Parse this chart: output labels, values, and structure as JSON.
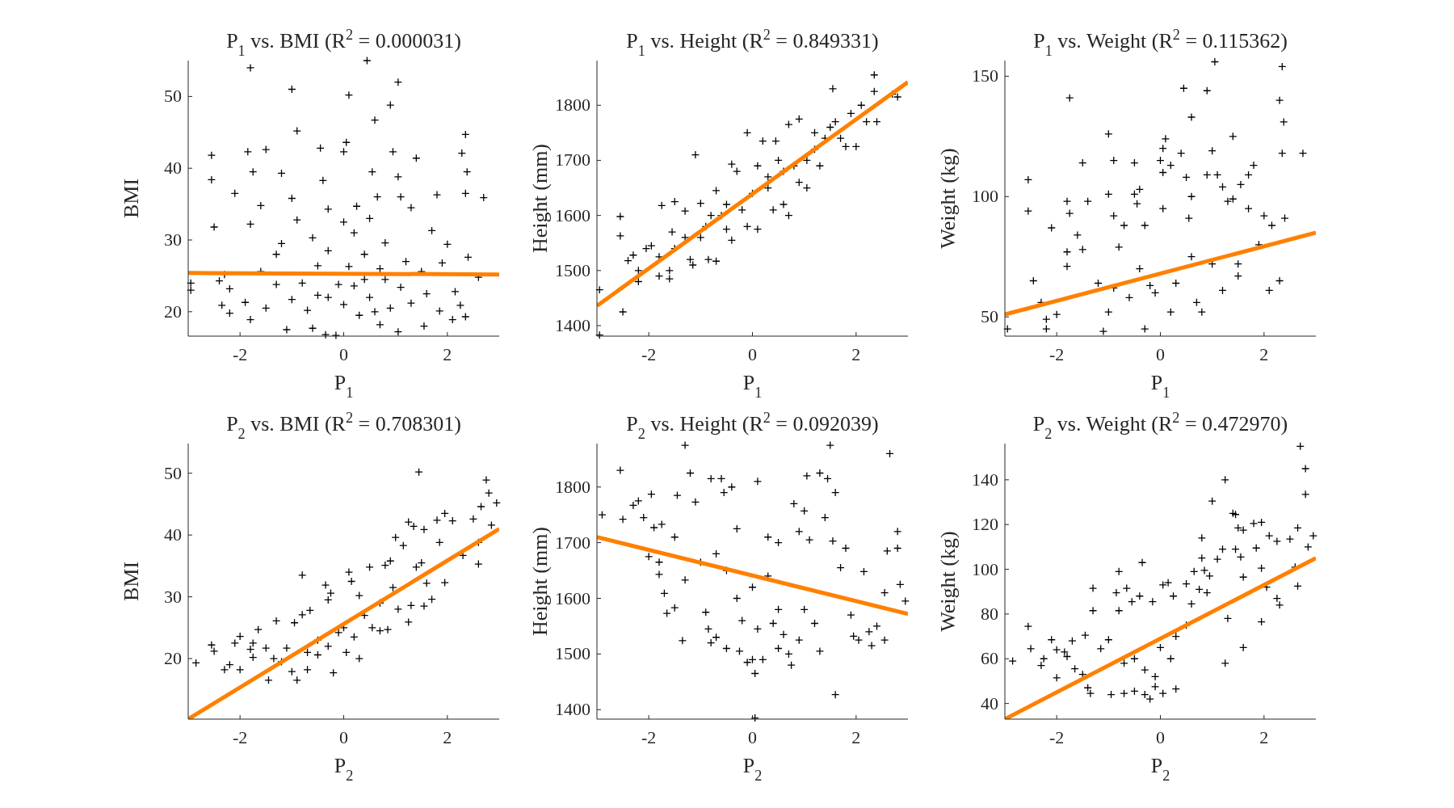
{
  "chart_data": [
    {
      "type": "scatter",
      "title": "P$_{1}$ vs. BMI (R$^{2}$ = 0.000031)",
      "xlabel": "P$_{1}$",
      "ylabel": "BMI",
      "xlim": [
        -3,
        3
      ],
      "ylim": [
        16.6,
        55
      ],
      "xticks": [
        -2,
        0,
        2
      ],
      "yticks": [
        20,
        30,
        40,
        50
      ],
      "series": [
        {
          "marker": "cross",
          "color": "#000000",
          "x": [
            -1.8,
            -1.0,
            0.1,
            0.45,
            1.05,
            0.9,
            0.6,
            -0.9,
            2.35,
            -2.55,
            -2.55,
            -1.85,
            -1.5,
            -0.45,
            0.0,
            0.05,
            0.95,
            2.28,
            2.38,
            1.4,
            -1.75,
            -1.2,
            -0.4,
            0.55,
            1.05,
            -2.1,
            2.35,
            2.7,
            -2.5,
            -1.6,
            -1.0,
            -0.3,
            0.25,
            0.65,
            1.1,
            1.8,
            -1.8,
            -0.9,
            0.0,
            0.5,
            1.3,
            -1.2,
            -0.6,
            0.2,
            0.8,
            1.7,
            2.0,
            -1.3,
            -0.3,
            0.4,
            1.2,
            1.9,
            2.4,
            -2.3,
            -1.6,
            -0.5,
            0.1,
            0.7,
            1.5,
            2.6,
            -2.95,
            -2.95,
            -2.4,
            -2.2,
            -2.35,
            -2.2,
            -1.9,
            -1.8,
            -1.5,
            -1.3,
            -1.0,
            -1.1,
            -0.7,
            -0.6,
            -0.3,
            -0.35,
            -0.15,
            0,
            0.2,
            0.3,
            0.5,
            0.7,
            0.9,
            1.05,
            1.1,
            1.3,
            1.55,
            1.6,
            1.85,
            2.1,
            2.15,
            2.35,
            2.25,
            0.8,
            -0.8,
            0.4,
            -0.1,
            -0.5,
            0.6
          ],
          "values": [
            54,
            51,
            50.2,
            55,
            52,
            48.8,
            46.7,
            45.2,
            44.7,
            41.8,
            38.4,
            42.3,
            42.6,
            42.8,
            42.3,
            43.6,
            42.3,
            42.1,
            39.5,
            41.4,
            39.5,
            39.3,
            38.3,
            39.5,
            38.8,
            36.5,
            36.5,
            35.9,
            31.8,
            34.8,
            35.8,
            34.3,
            34.7,
            36,
            36,
            36.3,
            32.2,
            32.8,
            32.5,
            33,
            34.5,
            29.5,
            30.3,
            31,
            29.6,
            31.3,
            29.4,
            28,
            28.5,
            28,
            27,
            26.8,
            27.6,
            25.2,
            25.6,
            26.4,
            26.3,
            26,
            25.6,
            24.8,
            24,
            23,
            24.3,
            23.2,
            20.9,
            19.8,
            21.3,
            18.9,
            20.5,
            23.8,
            21.7,
            17.5,
            20.2,
            17.7,
            22,
            16.8,
            16.7,
            21,
            23.6,
            19.5,
            22,
            18.2,
            20.5,
            17.2,
            23.4,
            21.2,
            18,
            22.5,
            20.1,
            18.9,
            22.8,
            19.3,
            20.9,
            24.5,
            24,
            24.5,
            23.8,
            22.3,
            20
          ]
        },
        {
          "type": "line",
          "color": "#ff8000",
          "x": [
            -3,
            3
          ],
          "values": [
            25.4,
            25.2
          ]
        }
      ]
    },
    {
      "type": "scatter",
      "title": "P$_{1}$ vs. Height (R$^{2}$ = 0.849331)",
      "xlabel": "P$_{1}$",
      "ylabel": "Height (mm)",
      "xlim": [
        -3,
        3
      ],
      "ylim": [
        1381,
        1881
      ],
      "xticks": [
        -2,
        0,
        2
      ],
      "yticks": [
        1400,
        1500,
        1600,
        1700,
        1800
      ],
      "series": [
        {
          "marker": "cross",
          "color": "#000000",
          "x": [
            -2.95,
            -2.95,
            -2.55,
            -2.55,
            -2.5,
            -2.4,
            -2.3,
            -2.2,
            -2.2,
            -2.05,
            -1.95,
            -1.8,
            -1.8,
            -1.75,
            -1.6,
            -1.6,
            -1.55,
            -1.5,
            -1.5,
            -1.3,
            -1.2,
            -1.15,
            -1.1,
            -1.0,
            -1.0,
            -0.9,
            -0.85,
            -0.7,
            -0.7,
            -0.6,
            -0.5,
            -0.4,
            -0.4,
            -0.3,
            -0.2,
            -0.1,
            -0.1,
            0,
            0.1,
            0.1,
            0.2,
            0.3,
            0.4,
            0.45,
            0.5,
            0.6,
            0.7,
            0.7,
            0.8,
            0.9,
            0.9,
            1.05,
            1.05,
            1.2,
            1.2,
            1.3,
            1.4,
            1.55,
            1.6,
            1.7,
            1.8,
            1.9,
            2.0,
            2.1,
            2.2,
            2.35,
            2.35,
            2.4,
            2.7,
            2.8,
            -0.5,
            0.3,
            -1.3,
            1.5,
            -0.8,
            0.6
          ],
          "values": [
            1465,
            1383,
            1598,
            1563,
            1425,
            1518,
            1528,
            1500,
            1480,
            1540,
            1545,
            1490,
            1525,
            1618,
            1500,
            1485,
            1570,
            1540,
            1625,
            1608,
            1520,
            1510,
            1710,
            1622,
            1560,
            1580,
            1520,
            1645,
            1517,
            1600,
            1575,
            1555,
            1693,
            1680,
            1610,
            1750,
            1580,
            1640,
            1690,
            1575,
            1735,
            1650,
            1610,
            1735,
            1700,
            1620,
            1600,
            1765,
            1690,
            1775,
            1660,
            1700,
            1650,
            1750,
            1720,
            1690,
            1740,
            1830,
            1770,
            1740,
            1725,
            1785,
            1725,
            1800,
            1770,
            1855,
            1825,
            1770,
            1820,
            1815,
            1620,
            1670,
            1560,
            1760,
            1600,
            1680
          ]
        },
        {
          "type": "line",
          "color": "#ff8000",
          "x": [
            -3,
            3
          ],
          "values": [
            1436,
            1842
          ]
        }
      ]
    },
    {
      "type": "scatter",
      "title": "P$_{1}$ vs. Weight (R$^{2}$ = 0.115362)",
      "xlabel": "P$_{1}$",
      "ylabel": "Weight (kg)",
      "xlim": [
        -3,
        3
      ],
      "ylim": [
        42,
        156.5
      ],
      "xticks": [
        -2,
        0,
        2
      ],
      "yticks": [
        50,
        100,
        150
      ],
      "series": [
        {
          "marker": "cross",
          "color": "#000000",
          "x": [
            -2.95,
            -2.55,
            -2.55,
            -2.45,
            -2.3,
            -2.2,
            -2.1,
            -2.2,
            -2.0,
            -1.8,
            -1.75,
            -1.75,
            -1.8,
            -1.8,
            -1.5,
            -1.6,
            -1.5,
            -1.4,
            -1.2,
            -1.1,
            -1.0,
            -1.0,
            -0.9,
            -0.9,
            -0.8,
            -0.7,
            -0.5,
            -0.5,
            -0.4,
            -0.45,
            -0.3,
            -0.3,
            -0.1,
            0,
            0.05,
            0.1,
            0.05,
            0.2,
            0.05,
            0.4,
            0.45,
            0.6,
            0.5,
            0.55,
            0.6,
            0.9,
            1.0,
            0.9,
            1.1,
            1.2,
            1.4,
            1.05,
            1.3,
            1.4,
            1.55,
            1.7,
            1.7,
            1.8,
            1.9,
            2.0,
            2.1,
            2.15,
            2.3,
            2.35,
            2.38,
            2.35,
            2.4,
            2.3,
            2.75,
            -0.6,
            -0.2,
            0.3,
            0.7,
            1.0,
            1.5,
            -1.0,
            0.2,
            0.8,
            1.2,
            -0.4,
            0.6,
            1.5,
            -0.9
          ],
          "values": [
            45,
            107,
            94,
            65,
            56,
            49,
            87,
            45,
            51,
            98,
            141,
            93,
            77,
            71,
            114,
            84,
            78,
            98,
            64,
            44,
            126,
            101,
            115,
            92,
            79,
            88,
            114,
            101,
            103,
            97,
            45,
            88,
            60,
            115,
            120,
            124,
            110,
            113,
            95,
            118,
            145,
            133,
            108,
            91,
            100,
            144,
            119,
            109,
            109,
            104,
            125,
            156,
            98,
            99,
            105,
            109,
            95,
            113,
            80,
            92,
            61,
            88,
            140,
            154,
            131,
            118,
            91,
            65,
            118,
            58,
            63,
            64,
            56,
            72,
            67,
            52,
            52,
            52,
            61,
            70,
            75,
            72,
            62
          ]
        },
        {
          "type": "line",
          "color": "#ff8000",
          "x": [
            -3,
            3
          ],
          "values": [
            51,
            85
          ]
        }
      ]
    },
    {
      "type": "scatter",
      "title": "P$_{2}$ vs. BMI (R$^{2}$ = 0.708301)",
      "xlabel": "P$_{2}$",
      "ylabel": "BMI",
      "xlim": [
        -3,
        3
      ],
      "ylim": [
        10.2,
        54.8
      ],
      "xticks": [
        -2,
        0,
        2
      ],
      "yticks": [
        20,
        30,
        40,
        50
      ],
      "series": [
        {
          "marker": "cross",
          "color": "#000000",
          "x": [
            -2.85,
            -2.55,
            -2.5,
            -2.3,
            -2.2,
            -2.1,
            -2.0,
            -2.0,
            -1.8,
            -1.75,
            -1.75,
            -1.65,
            -1.5,
            -1.45,
            -1.35,
            -1.3,
            -1.1,
            -1.0,
            -0.95,
            -0.9,
            -0.8,
            -0.8,
            -0.7,
            -0.65,
            -0.5,
            -0.35,
            -0.3,
            -0.2,
            -0.25,
            -0.1,
            0.05,
            0.1,
            0.15,
            0.3,
            0.3,
            0.5,
            0.55,
            0.7,
            0.8,
            0.85,
            0.9,
            0.95,
            1.0,
            1.05,
            1.15,
            1.25,
            1.25,
            1.3,
            1.35,
            1.4,
            1.45,
            1.55,
            1.6,
            1.55,
            1.7,
            1.8,
            1.85,
            1.95,
            1.95,
            2.1,
            2.3,
            2.5,
            2.6,
            2.6,
            2.65,
            2.75,
            2.8,
            2.95,
            2.85,
            -0.5,
            0,
            -0.3,
            0.4,
            -0.7,
            0.2,
            0.7,
            1.5,
            -1.2
          ],
          "values": [
            19.3,
            22.2,
            21.2,
            18.2,
            19,
            22.5,
            23.6,
            18.2,
            21.5,
            22.5,
            20.2,
            24.7,
            21.7,
            16.5,
            20,
            26.1,
            21.7,
            17.9,
            25.8,
            16.5,
            27.1,
            33.5,
            18.2,
            27.8,
            20.6,
            31.9,
            29.5,
            17.7,
            30.6,
            24.2,
            21,
            34,
            32.5,
            30.2,
            20,
            34.8,
            25,
            24.5,
            35.1,
            24.7,
            35.8,
            31.5,
            39.6,
            28,
            38.3,
            42.1,
            25.9,
            28.6,
            41.4,
            34.8,
            50.2,
            40.9,
            32.2,
            28.5,
            29.6,
            42.4,
            38.8,
            43.5,
            32.3,
            42.3,
            36.7,
            42.6,
            35.3,
            38.8,
            44.6,
            48.9,
            46.8,
            45.2,
            41.6,
            23,
            25,
            22,
            27,
            21,
            23.5,
            29,
            35.5,
            19.5
          ]
        },
        {
          "type": "line",
          "color": "#ff8000",
          "x": [
            -3,
            3
          ],
          "values": [
            10.2,
            41
          ]
        }
      ]
    },
    {
      "type": "scatter",
      "title": "P$_{2}$ vs. Height (R$^{2}$ = 0.092039)",
      "xlabel": "P$_{2}$",
      "ylabel": "Height (mm)",
      "xlim": [
        -3,
        3
      ],
      "ylim": [
        1383,
        1878
      ],
      "xticks": [
        -2,
        0,
        2
      ],
      "yticks": [
        1400,
        1500,
        1600,
        1700,
        1800
      ],
      "series": [
        {
          "marker": "cross",
          "color": "#000000",
          "x": [
            -2.9,
            -2.55,
            -2.5,
            -2.3,
            -2.2,
            -2.1,
            -2.0,
            -1.95,
            -1.9,
            -1.8,
            -1.8,
            -1.75,
            -1.7,
            -1.65,
            -1.5,
            -1.5,
            -1.45,
            -1.35,
            -1.3,
            -1.2,
            -1.3,
            -1.1,
            -1.0,
            -0.9,
            -0.85,
            -0.8,
            -0.8,
            -0.7,
            -0.6,
            -0.55,
            -0.5,
            -0.4,
            -0.3,
            -0.25,
            -0.1,
            0.0,
            0.05,
            0.05,
            0.1,
            0.1,
            0.2,
            0.3,
            0.4,
            0.5,
            0.5,
            0.6,
            0.7,
            0.75,
            0.8,
            0.9,
            0.9,
            1.0,
            1.05,
            1.1,
            1.2,
            1.3,
            1.3,
            1.4,
            1.45,
            1.5,
            1.55,
            1.6,
            1.6,
            1.7,
            1.8,
            1.9,
            1.95,
            2.05,
            2.15,
            2.25,
            2.3,
            2.4,
            2.55,
            2.55,
            2.6,
            2.65,
            2.8,
            2.8,
            2.85,
            2.95,
            -0.5,
            0.0,
            -0.3,
            0.3,
            -0.7,
            0.5,
            -0.2,
            1.0
          ],
          "values": [
            1750,
            1830,
            1742,
            1767,
            1775,
            1745,
            1675,
            1787,
            1727,
            1665,
            1643,
            1733,
            1609,
            1573,
            1583,
            1710,
            1785,
            1524,
            1875,
            1825,
            1633,
            1773,
            1665,
            1575,
            1545,
            1815,
            1520,
            1530,
            1815,
            1790,
            1510,
            1800,
            1725,
            1505,
            1485,
            1490,
            1465,
            1385,
            1810,
            1545,
            1490,
            1710,
            1555,
            1700,
            1510,
            1535,
            1500,
            1480,
            1770,
            1720,
            1525,
            1757,
            1820,
            1705,
            1555,
            1825,
            1505,
            1745,
            1815,
            1875,
            1703,
            1790,
            1427,
            1655,
            1690,
            1570,
            1532,
            1525,
            1648,
            1540,
            1515,
            1550,
            1525,
            1610,
            1685,
            1860,
            1720,
            1690,
            1625,
            1595,
            1650,
            1620,
            1600,
            1640,
            1680,
            1580,
            1560,
            1580
          ]
        },
        {
          "type": "line",
          "color": "#ff8000",
          "x": [
            -3,
            3
          ],
          "values": [
            1710,
            1572
          ]
        }
      ]
    },
    {
      "type": "scatter",
      "title": "P$_{2}$ vs. Weight (R$^{2}$ = 0.472970)",
      "xlabel": "P$_{2}$",
      "ylabel": "Weight (kg)",
      "xlim": [
        -3,
        3
      ],
      "ylim": [
        33,
        156.2
      ],
      "xticks": [
        -2,
        0,
        2
      ],
      "yticks": [
        40,
        60,
        80,
        100,
        120,
        140
      ],
      "series": [
        {
          "marker": "cross",
          "color": "#000000",
          "x": [
            -2.85,
            -2.55,
            -2.5,
            -2.3,
            -2.25,
            -2.1,
            -2.0,
            -2.0,
            -1.85,
            -1.8,
            -1.7,
            -1.65,
            -1.5,
            -1.45,
            -1.4,
            -1.35,
            -1.3,
            -1.3,
            -1.15,
            -1.0,
            -0.95,
            -0.85,
            -0.8,
            -0.8,
            -0.7,
            -0.65,
            -0.55,
            -0.5,
            -0.4,
            -0.35,
            -0.3,
            -0.2,
            -0.15,
            -0.1,
            0.05,
            0.05,
            0.15,
            0.25,
            0.3,
            0.5,
            0.6,
            0.65,
            0.75,
            0.8,
            0.8,
            0.85,
            0.9,
            0.95,
            1.0,
            1.1,
            1.2,
            1.25,
            1.25,
            1.3,
            1.4,
            1.45,
            1.45,
            1.5,
            1.55,
            1.6,
            1.6,
            1.6,
            1.8,
            1.85,
            1.95,
            1.95,
            1.95,
            2.05,
            2.1,
            2.25,
            2.3,
            2.25,
            2.5,
            2.6,
            2.65,
            2.65,
            2.8,
            2.8,
            2.7,
            2.85,
            2.95,
            -0.5,
            0,
            -0.3,
            0.3,
            -0.7,
            0.5,
            0.2,
            -0.1
          ],
          "values": [
            59,
            74.5,
            64.5,
            57,
            60,
            68.5,
            64,
            51.5,
            63,
            61,
            68,
            55.5,
            53,
            70.5,
            47,
            44.5,
            81.5,
            91.5,
            64.5,
            68.5,
            44,
            89.5,
            81.5,
            99,
            44.5,
            91.5,
            85.5,
            45.5,
            88,
            103,
            44,
            42,
            85.5,
            47.5,
            93,
            44.5,
            94,
            88,
            46.5,
            93.5,
            84.5,
            99,
            91,
            105,
            114,
            99.5,
            89.5,
            97,
            130.5,
            104.5,
            109,
            140,
            58,
            78,
            125,
            109,
            124.5,
            118.5,
            105.5,
            117.5,
            65,
            96.5,
            120.5,
            109.5,
            121,
            100.5,
            76.5,
            92,
            115,
            112.5,
            84,
            87,
            113.5,
            101,
            118.5,
            92.5,
            133.5,
            145,
            155,
            110,
            115,
            60,
            65,
            55,
            70,
            58,
            75,
            60,
            52
          ]
        },
        {
          "type": "line",
          "color": "#ff8000",
          "x": [
            -3,
            3
          ],
          "values": [
            33,
            105
          ]
        }
      ]
    }
  ]
}
